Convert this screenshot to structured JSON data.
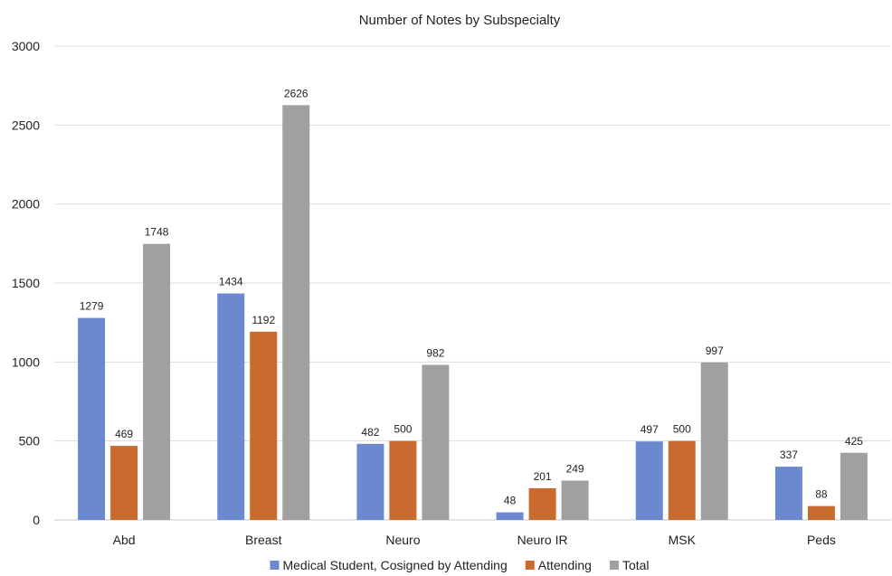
{
  "chart_data": {
    "type": "bar",
    "title": "Number of Notes by Subspecialty",
    "xlabel": "",
    "ylabel": "",
    "ylim": [
      0,
      3000
    ],
    "yticks": [
      0,
      500,
      1000,
      1500,
      2000,
      2500,
      3000
    ],
    "grid": true,
    "legend_position": "bottom",
    "categories": [
      "Abd",
      "Breast",
      "Neuro",
      "Neuro IR",
      "MSK",
      "Peds"
    ],
    "series": [
      {
        "name": "Medical Student, Cosigned by Attending",
        "color": "#6a89cf",
        "values": [
          1279,
          1434,
          482,
          48,
          497,
          337
        ]
      },
      {
        "name": "Attending",
        "color": "#c96b2e",
        "values": [
          469,
          1192,
          500,
          201,
          500,
          88
        ]
      },
      {
        "name": "Total",
        "color": "#a0a0a0",
        "values": [
          1748,
          2626,
          982,
          249,
          997,
          425
        ]
      }
    ]
  }
}
